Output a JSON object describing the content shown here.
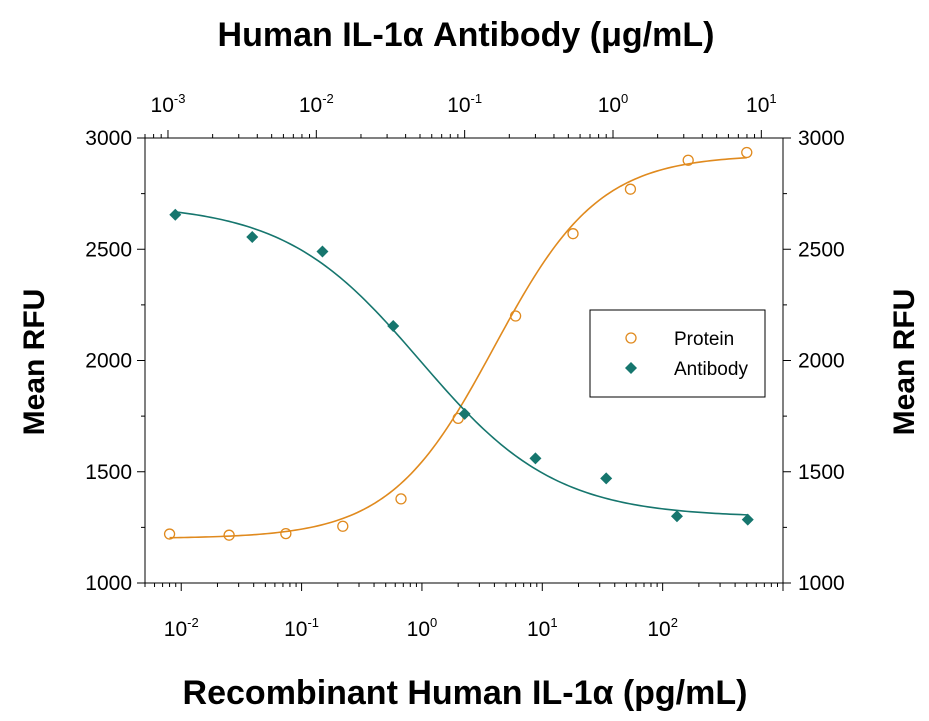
{
  "chart_data": {
    "type": "scatter",
    "title": "Human IL-1α Antibody (μg/mL)",
    "xlabel": "Recombinant Human IL-1α (pg/mL)",
    "ylabel": "Mean RFU",
    "ylabel_right": "Mean RFU",
    "x_scale": "log",
    "x2_scale": "log",
    "xlim": [
      0.005,
      1000
    ],
    "x2lim": [
      0.0007,
      14
    ],
    "ylim": [
      1000,
      3000
    ],
    "x_ticks": [
      {
        "value": 0.01,
        "base": "10",
        "exp": "-2"
      },
      {
        "value": 0.1,
        "base": "10",
        "exp": "-1"
      },
      {
        "value": 1,
        "base": "10",
        "exp": "0"
      },
      {
        "value": 10,
        "base": "10",
        "exp": "1"
      },
      {
        "value": 100,
        "base": "10",
        "exp": "2"
      }
    ],
    "x2_ticks": [
      {
        "value": 0.001,
        "base": "10",
        "exp": "-3"
      },
      {
        "value": 0.01,
        "base": "10",
        "exp": "-2"
      },
      {
        "value": 0.1,
        "base": "10",
        "exp": "-1"
      },
      {
        "value": 1,
        "base": "10",
        "exp": "0"
      },
      {
        "value": 10,
        "base": "10",
        "exp": "1"
      }
    ],
    "y_ticks": [
      "1000",
      "1500",
      "2000",
      "2500",
      "3000"
    ],
    "grid": false,
    "legend_position": "center-right",
    "series": [
      {
        "name": "Protein",
        "axis": "bottom",
        "marker": "open-circle",
        "color": "#e08a1e",
        "points": [
          {
            "x": 0.008,
            "y": 1220
          },
          {
            "x": 0.025,
            "y": 1215
          },
          {
            "x": 0.074,
            "y": 1222
          },
          {
            "x": 0.22,
            "y": 1255
          },
          {
            "x": 0.67,
            "y": 1378
          },
          {
            "x": 2.0,
            "y": 1740
          },
          {
            "x": 6.0,
            "y": 2200
          },
          {
            "x": 18.0,
            "y": 2570
          },
          {
            "x": 54.0,
            "y": 2770
          },
          {
            "x": 163.0,
            "y": 2900
          },
          {
            "x": 500.0,
            "y": 2935
          }
        ],
        "fit": {
          "bottom": 1200,
          "top": 2925,
          "ec50": 4.0,
          "hill": 1.0
        }
      },
      {
        "name": "Antibody",
        "axis": "top",
        "marker": "filled-diamond",
        "color": "#16766e",
        "points": [
          {
            "x": 0.00112,
            "y": 2655
          },
          {
            "x": 0.0037,
            "y": 2555
          },
          {
            "x": 0.011,
            "y": 2490
          },
          {
            "x": 0.033,
            "y": 2155
          },
          {
            "x": 0.1,
            "y": 1760
          },
          {
            "x": 0.3,
            "y": 1560
          },
          {
            "x": 0.9,
            "y": 1470
          },
          {
            "x": 2.7,
            "y": 1300
          },
          {
            "x": 8.1,
            "y": 1285
          }
        ],
        "fit": {
          "bottom": 1295,
          "top": 2705,
          "ec50": 0.05,
          "hill": -0.95
        }
      }
    ]
  }
}
